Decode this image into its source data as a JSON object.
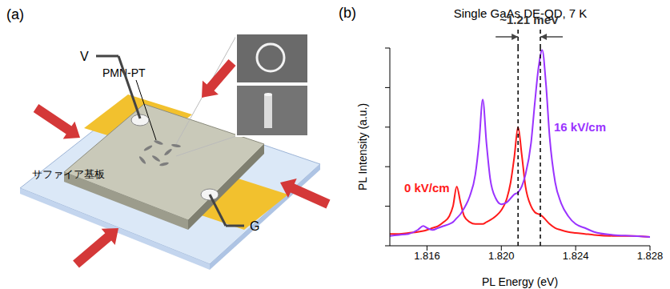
{
  "diagram": {
    "label": "(a)",
    "material": "PMN-PT",
    "substrate": "サファイア基板",
    "voltage_terminal": "V",
    "ground_terminal": "G"
  },
  "chart_data": {
    "type": "line",
    "panel_label": "(b)",
    "title": "Single GaAs DE-QD, 7 K",
    "x_label": "PL Energy (eV)",
    "y_label": "PL Intensity (a.u.)",
    "x": [
      1.814,
      1.8145,
      1.815,
      1.8155,
      1.8158,
      1.816,
      1.8163,
      1.8166,
      1.8169,
      1.8172,
      1.8174,
      1.8176,
      1.8178,
      1.818,
      1.8183,
      1.8186,
      1.8188,
      1.819,
      1.8192,
      1.8194,
      1.8197,
      1.82,
      1.8203,
      1.8205,
      1.8207,
      1.8209,
      1.8211,
      1.8213,
      1.8216,
      1.8218,
      1.822,
      1.8222,
      1.8224,
      1.8226,
      1.8229,
      1.8232,
      1.8236,
      1.824,
      1.8245,
      1.825,
      1.826,
      1.827,
      1.828
    ],
    "xlim": [
      1.814,
      1.828
    ],
    "xticks": [
      1.816,
      {
        "value": 1.82,
        "label": "1.820"
      },
      1.824,
      1.828
    ],
    "ylim": [
      0,
      1
    ],
    "yticks": [
      0,
      0.2,
      0.4,
      0.6,
      0.8,
      1
    ],
    "tick_labels": "x",
    "grid": false,
    "series": [
      {
        "name": "0 kV/cm",
        "color": "#ff1a1a",
        "values": [
          0.06,
          0.06,
          0.065,
          0.07,
          0.075,
          0.08,
          0.09,
          0.1,
          0.12,
          0.15,
          0.2,
          0.3,
          0.22,
          0.15,
          0.12,
          0.11,
          0.11,
          0.11,
          0.12,
          0.13,
          0.15,
          0.18,
          0.24,
          0.32,
          0.45,
          0.6,
          0.46,
          0.3,
          0.2,
          0.17,
          0.16,
          0.15,
          0.13,
          0.11,
          0.09,
          0.08,
          0.07,
          0.065,
          0.06,
          0.055,
          0.05,
          0.05,
          0.045
        ]
      },
      {
        "name": "16 kV/cm",
        "color": "#9a33ff",
        "values": [
          0.05,
          0.055,
          0.06,
          0.08,
          0.1,
          0.09,
          0.08,
          0.09,
          0.1,
          0.11,
          0.12,
          0.14,
          0.16,
          0.19,
          0.25,
          0.36,
          0.52,
          0.74,
          0.52,
          0.34,
          0.24,
          0.21,
          0.22,
          0.24,
          0.26,
          0.27,
          0.3,
          0.36,
          0.52,
          0.72,
          0.9,
          0.99,
          0.82,
          0.55,
          0.32,
          0.22,
          0.15,
          0.11,
          0.09,
          0.07,
          0.055,
          0.05,
          0.045
        ]
      }
    ],
    "reference_lines": [
      1.8209,
      1.8221
    ],
    "annotation": "~1.21 meV"
  }
}
